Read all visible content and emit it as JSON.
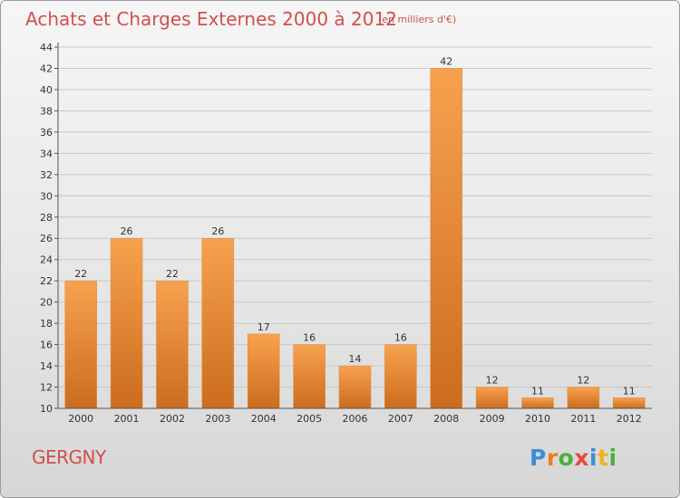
{
  "title": "Achats et Charges Externes 2000 à 2012",
  "subtitle": "(en milliers d'€)",
  "place": "GERGNY",
  "logo": "Proxiti",
  "colors": {
    "bar_top": "#f7a24e",
    "bar_bottom": "#cc6c1e",
    "title": "#d0504a",
    "grid": "#c8c8c8",
    "axis": "#555555"
  },
  "chart_data": {
    "type": "bar",
    "title": "Achats et Charges Externes 2000 à 2012",
    "subtitle": "(en milliers d'€)",
    "categories": [
      "2000",
      "2001",
      "2002",
      "2003",
      "2004",
      "2005",
      "2006",
      "2007",
      "2008",
      "2009",
      "2010",
      "2011",
      "2012"
    ],
    "values": [
      22,
      26,
      22,
      26,
      17,
      16,
      14,
      16,
      42,
      12,
      11,
      12,
      11
    ],
    "data_labels": [
      "22",
      "26",
      "22",
      "26",
      "17",
      "16",
      "14",
      "16",
      "42",
      "12",
      "11",
      "12",
      "11"
    ],
    "yticks": [
      "10",
      "12",
      "14",
      "16",
      "18",
      "20",
      "22",
      "24",
      "26",
      "28",
      "30",
      "32",
      "34",
      "36",
      "38",
      "40",
      "42",
      "44"
    ],
    "ylim": [
      10,
      44
    ],
    "xlabel": "",
    "ylabel": "",
    "grid": true,
    "legend": "none"
  }
}
